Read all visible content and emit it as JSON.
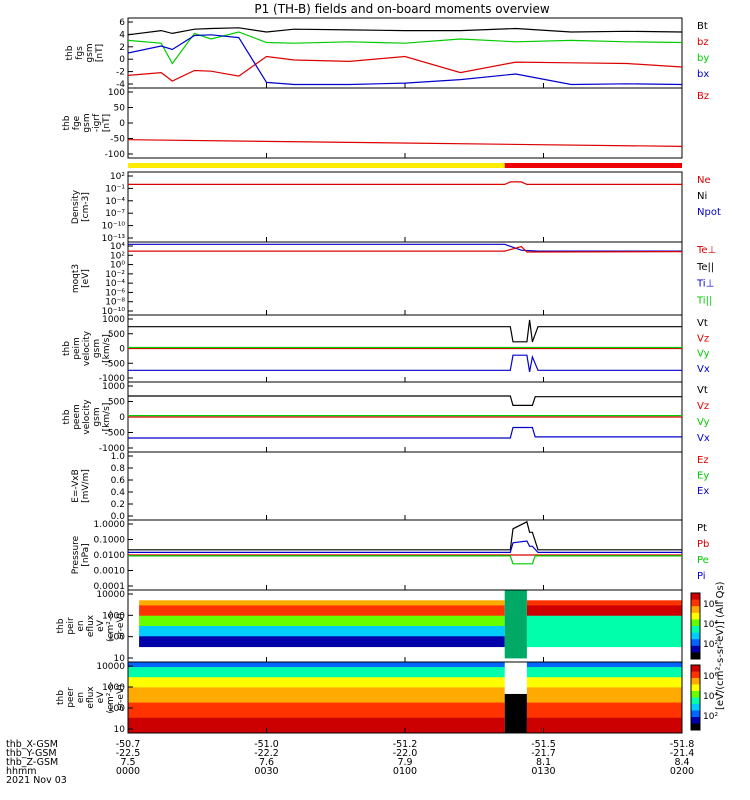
{
  "title": "P1 (TH-B) fields and on-board moments overview",
  "colors": {
    "black": "#000000",
    "red": "#dd0000",
    "green": "#00cc00",
    "blue": "#0000cc",
    "yellow": "#ffee00",
    "bar_red": "#ee0000"
  },
  "chart_data": [
    {
      "type": "line",
      "ylabel": [
        "thb",
        "fgs",
        "gsm",
        "[nT]"
      ],
      "ylim": [
        -4,
        6
      ],
      "yticks": [
        "6",
        "4",
        "2",
        "0",
        "-2",
        "-4"
      ],
      "legend": [
        {
          "name": "Bt",
          "color": "#000000"
        },
        {
          "name": "bz",
          "color": "#dd0000"
        },
        {
          "name": "by",
          "color": "#00cc00"
        },
        {
          "name": "bx",
          "color": "#0000cc"
        }
      ],
      "series": [
        {
          "name": "Bt",
          "x": [
            0,
            6,
            8,
            12,
            15,
            20,
            25,
            30,
            40,
            50,
            60,
            70,
            80,
            90,
            100
          ],
          "y": [
            3.6,
            4.2,
            3.8,
            4.4,
            4.5,
            4.6,
            4.0,
            4.4,
            4.3,
            4.2,
            4.2,
            4.5,
            4.0,
            4.1,
            4.0
          ]
        },
        {
          "name": "bz",
          "x": [
            0,
            6,
            8,
            12,
            15,
            20,
            25,
            30,
            40,
            50,
            60,
            70,
            80,
            90,
            100
          ],
          "y": [
            -2.2,
            -1.8,
            -3.0,
            -1.5,
            -1.6,
            -2.3,
            0.5,
            0,
            -0.2,
            0.5,
            -1.8,
            -0.3,
            -0.4,
            -0.5,
            -1.0
          ]
        },
        {
          "name": "by",
          "x": [
            0,
            6,
            8,
            12,
            15,
            20,
            25,
            30,
            40,
            50,
            60,
            70,
            80,
            90,
            100
          ],
          "y": [
            2.8,
            2.4,
            -0.5,
            3.8,
            3.0,
            4.0,
            2.5,
            2.4,
            2.6,
            2.4,
            3.0,
            2.6,
            2.8,
            2.6,
            2.5
          ]
        },
        {
          "name": "bx",
          "x": [
            0,
            6,
            8,
            12,
            15,
            20,
            25,
            30,
            40,
            50,
            60,
            70,
            80,
            90,
            100
          ],
          "y": [
            1.0,
            2.0,
            1.5,
            3.5,
            3.6,
            3.2,
            -3.2,
            -3.5,
            -3.5,
            -3.3,
            -2.8,
            -2.0,
            -3.5,
            -3.4,
            -3.5
          ]
        }
      ]
    },
    {
      "type": "line",
      "ylabel": [
        "thb",
        "fge",
        "gsm",
        "-igrf",
        "[nT]"
      ],
      "ylim": [
        -130,
        100
      ],
      "yticks": [
        "100",
        "50",
        "0",
        "-50",
        "-100"
      ],
      "legend": [
        {
          "name": "Bz",
          "color": "#dd0000"
        }
      ],
      "series": [
        {
          "name": "Bz",
          "x": [
            0,
            100
          ],
          "y": [
            -70,
            -92
          ]
        }
      ]
    },
    {
      "type": "line",
      "ylabel": [
        "Density",
        "[cm-3]"
      ],
      "ylim_log": [
        -14,
        3
      ],
      "yticks": [
        "10²",
        "10⁻¹",
        "10⁻⁴",
        "10⁻⁷",
        "10⁻¹⁰",
        "10⁻¹³"
      ],
      "legend": [
        {
          "name": "Ne",
          "color": "#dd0000"
        },
        {
          "name": "Ni",
          "color": "#000000"
        },
        {
          "name": "Npot",
          "color": "#0000cc"
        }
      ],
      "series": [
        {
          "name": "Ne",
          "x": [
            0,
            68,
            69,
            71,
            72,
            100
          ],
          "y": [
            0,
            0,
            0.6,
            0.6,
            0,
            0
          ]
        }
      ]
    },
    {
      "type": "line",
      "ylabel": [
        "moqt3",
        "[eV]"
      ],
      "ylim_log": [
        -12,
        4
      ],
      "yticks": [
        "10⁴",
        "10²",
        "10⁰",
        "10⁻²",
        "10⁻⁴",
        "10⁻⁶",
        "10⁻⁸",
        "10⁻¹⁰"
      ],
      "legend": [
        {
          "name": "Te⊥",
          "color": "#dd0000"
        },
        {
          "name": "Te||",
          "color": "#000000"
        },
        {
          "name": "Ti⊥",
          "color": "#0000cc"
        },
        {
          "name": "Ti||",
          "color": "#00cc00"
        }
      ],
      "series": [
        {
          "name": "Ti⊥",
          "x": [
            0,
            68,
            71,
            74,
            100
          ],
          "y": [
            3.5,
            3.5,
            2.2,
            2.0,
            2.0
          ]
        },
        {
          "name": "Te⊥",
          "x": [
            0,
            68,
            71,
            72,
            100
          ],
          "y": [
            2.0,
            2.0,
            3.0,
            1.8,
            1.9
          ]
        }
      ]
    },
    {
      "type": "line",
      "ylabel": [
        "thb",
        "peim",
        "velocity",
        "gsm",
        "[km/s]"
      ],
      "ylim": [
        -1000,
        1000
      ],
      "yticks": [
        "1000",
        "500",
        "0",
        "-500",
        "-1000"
      ],
      "legend": [
        {
          "name": "Vt",
          "color": "#000000"
        },
        {
          "name": "Vz",
          "color": "#dd0000"
        },
        {
          "name": "Vy",
          "color": "#00cc00"
        },
        {
          "name": "Vx",
          "color": "#0000cc"
        }
      ],
      "series": [
        {
          "name": "Vt",
          "x": [
            0,
            69,
            69.5,
            72,
            72.5,
            73,
            74,
            100
          ],
          "y": [
            650,
            650,
            200,
            200,
            850,
            200,
            650,
            650
          ]
        },
        {
          "name": "Vz",
          "x": [
            0,
            100
          ],
          "y": [
            0,
            0
          ]
        },
        {
          "name": "Vy",
          "x": [
            0,
            100
          ],
          "y": [
            30,
            30
          ]
        },
        {
          "name": "Vx",
          "x": [
            0,
            69,
            69.5,
            72,
            72.5,
            73,
            74,
            100
          ],
          "y": [
            -650,
            -650,
            -200,
            -200,
            -700,
            -250,
            -650,
            -650
          ]
        }
      ]
    },
    {
      "type": "line",
      "ylabel": [
        "thb",
        "peem",
        "velocity",
        "gsm",
        "[km/s]"
      ],
      "ylim": [
        -1000,
        1000
      ],
      "yticks": [
        "1000",
        "500",
        "0",
        "-500",
        "-1000"
      ],
      "legend": [
        {
          "name": "Vt",
          "color": "#000000"
        },
        {
          "name": "Vz",
          "color": "#dd0000"
        },
        {
          "name": "Vy",
          "color": "#00cc00"
        },
        {
          "name": "Vx",
          "color": "#0000cc"
        }
      ],
      "series": [
        {
          "name": "Vt",
          "x": [
            0,
            69,
            69.5,
            73,
            73.5,
            100
          ],
          "y": [
            600,
            600,
            330,
            330,
            580,
            580
          ]
        },
        {
          "name": "Vz",
          "x": [
            0,
            100
          ],
          "y": [
            0,
            0
          ]
        },
        {
          "name": "Vy",
          "x": [
            0,
            100
          ],
          "y": [
            40,
            40
          ]
        },
        {
          "name": "Vx",
          "x": [
            0,
            69,
            69.5,
            73,
            73.5,
            100
          ],
          "y": [
            -600,
            -600,
            -300,
            -300,
            -570,
            -570
          ]
        }
      ]
    },
    {
      "type": "line",
      "ylabel": [
        "E=-VxB",
        "[mV/m]"
      ],
      "ylim": [
        0,
        1
      ],
      "yticks": [
        "1.0",
        "0.8",
        "0.6",
        "0.4",
        "0.2",
        "0.0"
      ],
      "legend": [
        {
          "name": "Ez",
          "color": "#dd0000"
        },
        {
          "name": "Ey",
          "color": "#00cc00"
        },
        {
          "name": "Ex",
          "color": "#0000cc"
        }
      ],
      "series": []
    },
    {
      "type": "line",
      "ylabel": [
        "Pressure",
        "[nPa]"
      ],
      "ylim_log": [
        -4,
        0
      ],
      "yticks": [
        "1.0000",
        "0.1000",
        "0.0100",
        "0.0010",
        "0.0001"
      ],
      "legend": [
        {
          "name": "Pt",
          "color": "#000000"
        },
        {
          "name": "Pb",
          "color": "#dd0000"
        },
        {
          "name": "Pe",
          "color": "#00cc00"
        },
        {
          "name": "Pi",
          "color": "#0000cc"
        }
      ],
      "series": [
        {
          "name": "Pt",
          "x": [
            0,
            69,
            69.5,
            72,
            72.5,
            73,
            74,
            100
          ],
          "y": [
            -1.7,
            -1.7,
            -0.5,
            -0.1,
            -0.7,
            -0.7,
            -1.7,
            -1.7
          ]
        },
        {
          "name": "Pi",
          "x": [
            0,
            69,
            69.5,
            72,
            72.5,
            73,
            74,
            100
          ],
          "y": [
            -1.85,
            -1.85,
            -1.3,
            -1.2,
            -1.5,
            -1.5,
            -1.85,
            -1.85
          ]
        },
        {
          "name": "Pb",
          "x": [
            0,
            100
          ],
          "y": [
            -2.0,
            -2.0
          ]
        },
        {
          "name": "Pe",
          "x": [
            0,
            69,
            69.5,
            73,
            73.5,
            100
          ],
          "y": [
            -2.05,
            -2.05,
            -2.5,
            -2.5,
            -2.05,
            -2.05
          ]
        }
      ]
    },
    {
      "type": "heatmap",
      "ylabel": [
        "thb",
        "peir",
        "en",
        "eflux",
        "eV",
        "(cm²-s-",
        "sr-eV)"
      ],
      "yticks": [
        "10000",
        "1000",
        "100",
        "10"
      ],
      "colorbar_ticks": [
        "10⁶",
        "10⁴",
        "10²"
      ]
    },
    {
      "type": "heatmap",
      "ylabel": [
        "thb",
        "peer",
        "en",
        "eflux",
        "eV",
        "(cm²-s-",
        "sr-eV)"
      ],
      "yticks": [
        "10000",
        "1000",
        "100",
        "10"
      ],
      "colorbar_ticks": [
        "10⁶",
        "10⁴",
        "10²"
      ]
    }
  ],
  "colorbar_label": "[eV/(cm²-s-sr-eV)] (All Qs)",
  "xaxis": {
    "row_labels": [
      "thb_X-GSM",
      "thb_Y-GSM",
      "thb_Z-GSM",
      "hhmm",
      "2021 Nov 03"
    ],
    "ticks": [
      {
        "x": 0,
        "X": "-50.7",
        "Y": "-22.5",
        "Z": "7.5",
        "t": "0000"
      },
      {
        "x": 25,
        "X": "-51.0",
        "Y": "-22.2",
        "Z": "7.6",
        "t": "0030"
      },
      {
        "x": 50,
        "X": "-51.2",
        "Y": "-22.0",
        "Z": "7.9",
        "t": "0100"
      },
      {
        "x": 75,
        "X": "-51.5",
        "Y": "-21.7",
        "Z": "8.1",
        "t": "0130"
      },
      {
        "x": 100,
        "X": "-51.8",
        "Y": "-21.4",
        "Z": "8.4",
        "t": "0200"
      }
    ]
  }
}
